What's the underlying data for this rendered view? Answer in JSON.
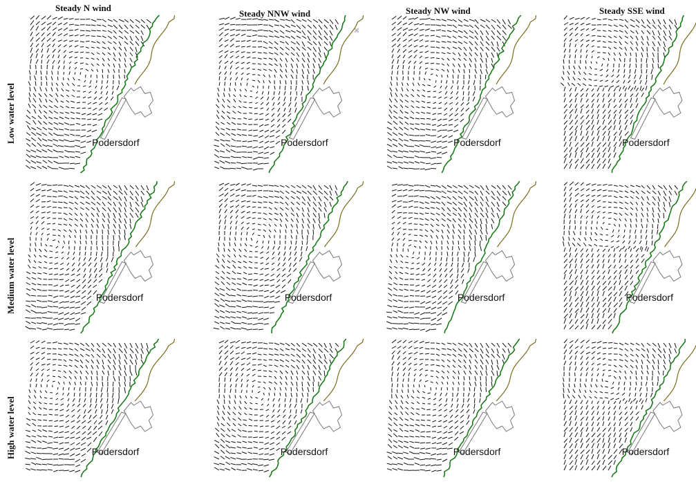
{
  "figure": {
    "columns": [
      "Steady N wind",
      "Steady NNW wind",
      "Steady NW wind",
      "Steady SSE wind"
    ],
    "rows": [
      "Low  water level",
      "Medium water level",
      "High water level"
    ],
    "place_label": "Podersdorf",
    "colors": {
      "vectors": "#111111",
      "shoreline": "#1a7a1a",
      "outer_shore": "#7a6a1a",
      "town": "#777777",
      "background": "#ffffff"
    },
    "vector_field_note_icon": "gyre-vector-field"
  }
}
